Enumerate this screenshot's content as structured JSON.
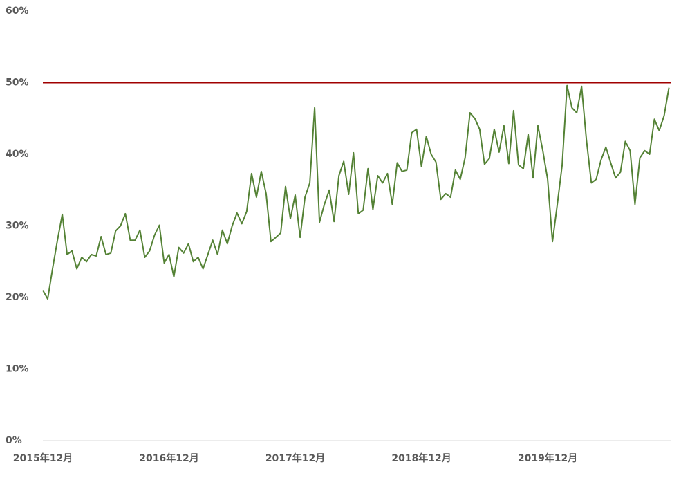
{
  "chart_data": {
    "type": "line",
    "categories": [
      "2015年12月",
      null,
      null,
      null,
      null,
      null,
      null,
      null,
      null,
      null,
      null,
      null,
      null,
      null,
      null,
      null,
      null,
      null,
      null,
      null,
      null,
      null,
      null,
      null,
      null,
      null,
      "2016年12月",
      null,
      null,
      null,
      null,
      null,
      null,
      null,
      null,
      null,
      null,
      null,
      null,
      null,
      null,
      null,
      null,
      null,
      null,
      null,
      null,
      null,
      null,
      null,
      null,
      null,
      "2017年12月",
      null,
      null,
      null,
      null,
      null,
      null,
      null,
      null,
      null,
      null,
      null,
      null,
      null,
      null,
      null,
      null,
      null,
      null,
      null,
      null,
      null,
      null,
      null,
      null,
      null,
      "2018年12月",
      null,
      null,
      null,
      null,
      null,
      null,
      null,
      null,
      null,
      null,
      null,
      null,
      null,
      null,
      null,
      null,
      null,
      null,
      null,
      null,
      null,
      null,
      null,
      null,
      null,
      "2019年12月",
      null,
      null,
      null,
      null,
      null,
      null,
      null,
      null,
      null,
      null,
      null,
      null,
      null,
      null,
      null,
      null,
      null,
      null,
      null,
      null,
      null,
      null,
      null,
      null,
      null
    ],
    "series": [
      {
        "color": "#548235",
        "values": [
          21,
          19.8,
          24,
          28,
          31.6,
          26,
          26.5,
          24,
          25.6,
          25,
          26,
          25.8,
          28.5,
          26,
          26.2,
          29.3,
          30,
          31.7,
          28,
          28,
          29.4,
          25.6,
          26.5,
          28.7,
          30.1,
          24.8,
          26,
          22.9,
          27,
          26.2,
          27.5,
          25,
          25.6,
          24,
          26,
          28,
          26,
          29.4,
          27.5,
          30,
          31.8,
          30.3,
          32,
          37.3,
          34,
          37.6,
          34.5,
          27.8,
          28.4,
          29,
          35.5,
          31,
          34.3,
          28.4,
          34,
          36,
          46.5,
          30.5,
          33,
          35,
          30.6,
          37,
          39,
          34.4,
          40.2,
          31.7,
          32.2,
          38,
          32.3,
          37,
          36,
          37.3,
          33,
          38.8,
          37.6,
          37.8,
          43,
          43.5,
          38.3,
          42.5,
          40,
          38.9,
          33.7,
          34.5,
          34,
          37.8,
          36.5,
          39.5,
          45.8,
          45,
          43.5,
          38.6,
          39.4,
          43.5,
          40.3,
          44,
          38.7,
          46.1,
          38.5,
          38,
          42.8,
          36.7,
          44,
          40.5,
          36.5,
          27.8,
          33,
          38.5,
          49.6,
          46.5,
          45.8,
          49.5,
          42,
          36,
          36.5,
          39.2,
          41,
          38.8,
          36.7,
          37.5,
          41.8,
          40.5,
          33,
          39.5,
          40.5,
          40,
          44.9,
          43.3,
          45.4,
          49.3
        ]
      }
    ],
    "reference_line": {
      "value": 50,
      "color": "#a00000"
    },
    "ylim": [
      0,
      60
    ],
    "yticks": [
      {
        "value": 0,
        "label": "0%"
      },
      {
        "value": 10,
        "label": "10%"
      },
      {
        "value": 20,
        "label": "20%"
      },
      {
        "value": 30,
        "label": "30%"
      },
      {
        "value": 40,
        "label": "40%"
      },
      {
        "value": 50,
        "label": "50%"
      },
      {
        "value": 60,
        "label": "60%"
      }
    ],
    "grid": false
  }
}
